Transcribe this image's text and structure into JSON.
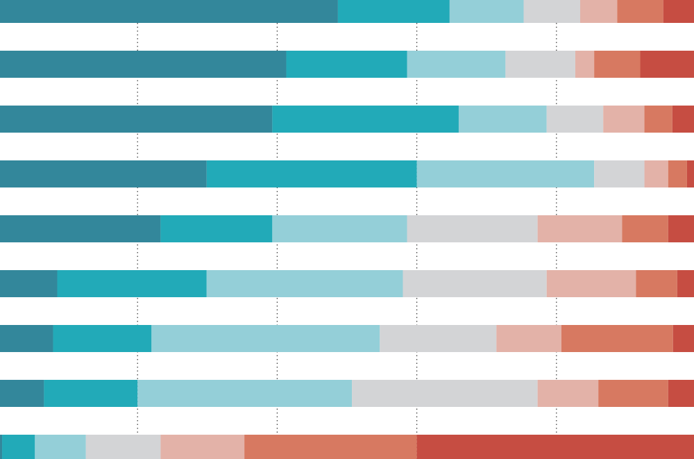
{
  "chart_data": {
    "type": "stacked-bar",
    "orientation": "horizontal",
    "categories": [
      null,
      null,
      null,
      null,
      null,
      null,
      null,
      null,
      null
    ],
    "xlim": [
      0,
      100
    ],
    "xticks": [
      20,
      40,
      60,
      80
    ],
    "grid": true,
    "series": [
      {
        "color": "#33879b",
        "values": [
          48.7,
          41.3,
          39.3,
          29.9,
          23.3,
          8.5,
          7.9,
          6.6,
          0.6
        ]
      },
      {
        "color": "#22aab8",
        "values": [
          16.0,
          17.3,
          26.7,
          30.1,
          16.0,
          21.4,
          14.1,
          13.4,
          4.7
        ]
      },
      {
        "color": "#94cfd8",
        "values": [
          10.6,
          14.1,
          12.6,
          25.4,
          19.3,
          28.1,
          32.7,
          30.7,
          7.3
        ]
      },
      {
        "color": "#d3d4d6",
        "values": [
          8.1,
          10.0,
          8.1,
          7.2,
          18.7,
          20.6,
          16.7,
          26.6,
          10.7
        ]
      },
      {
        "color": "#e3b2a8",
        "values": [
          5.3,
          2.7,
          5.9,
          3.4,
          12.1,
          12.8,
          9.3,
          8.7,
          12.0
        ]
      },
      {
        "color": "#d77961",
        "values": [
          6.6,
          6.6,
          4.0,
          2.7,
          6.6,
          5.9,
          16.0,
          10.0,
          24.7
        ]
      },
      {
        "color": "#c64d42",
        "values": [
          4.7,
          8.0,
          3.4,
          1.3,
          4.0,
          2.7,
          3.3,
          4.0,
          40.0
        ]
      }
    ]
  }
}
